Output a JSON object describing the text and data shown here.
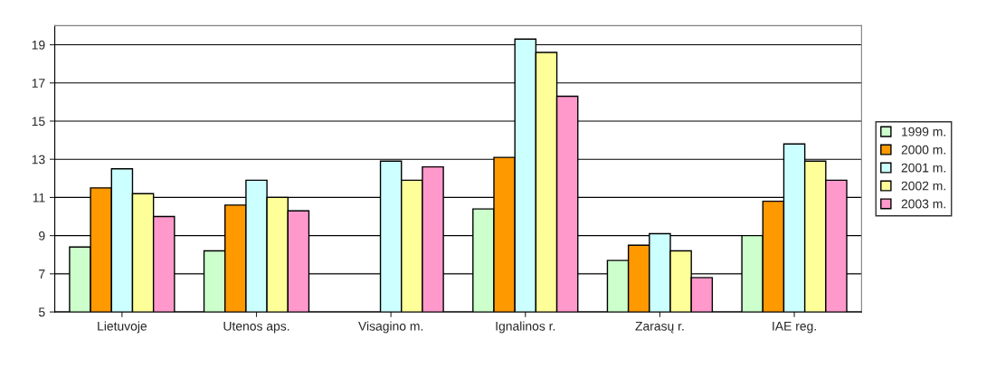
{
  "chart_data": {
    "type": "bar",
    "categories": [
      "Lietuvoje",
      "Utenos aps.",
      "Visagino m.",
      "Ignalinos r.",
      "Zarasų r.",
      "IAE reg."
    ],
    "series": [
      {
        "name": "1999 m.",
        "color": "#ccffcc",
        "values": [
          8.4,
          8.2,
          null,
          10.4,
          7.7,
          9.0
        ]
      },
      {
        "name": "2000 m.",
        "color": "#ff9900",
        "values": [
          11.5,
          10.6,
          null,
          13.1,
          8.5,
          10.8
        ]
      },
      {
        "name": "2001 m.",
        "color": "#ccffff",
        "values": [
          12.5,
          11.9,
          12.9,
          19.3,
          9.1,
          13.8
        ]
      },
      {
        "name": "2002 m.",
        "color": "#ffff99",
        "values": [
          11.2,
          11.0,
          11.9,
          18.6,
          8.2,
          12.9
        ]
      },
      {
        "name": "2003 m.",
        "color": "#ff99cc",
        "values": [
          10.0,
          10.3,
          12.6,
          16.3,
          6.8,
          11.9
        ]
      }
    ],
    "ylim": [
      5,
      20
    ],
    "yticks": [
      5,
      7,
      9,
      11,
      13,
      15,
      17,
      19
    ],
    "grid": "y",
    "legend": "right"
  }
}
